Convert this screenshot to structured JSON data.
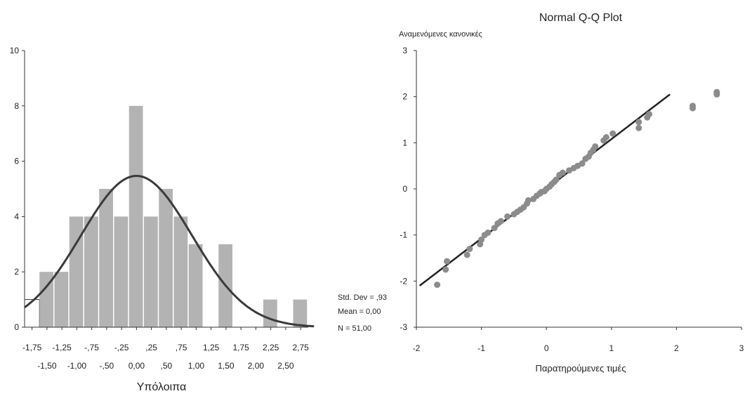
{
  "chart_data": [
    {
      "type": "bar",
      "xlabel": "Υπόλοιπα",
      "ylabel": "",
      "ylim": [
        0,
        10
      ],
      "yticks": [
        "0",
        "2",
        "4",
        "6",
        "8",
        "10"
      ],
      "bin_width": 0.25,
      "bins": [
        {
          "center": -1.75,
          "value": 1
        },
        {
          "center": -1.5,
          "value": 2
        },
        {
          "center": -1.25,
          "value": 2
        },
        {
          "center": -1.0,
          "value": 4
        },
        {
          "center": -0.75,
          "value": 4
        },
        {
          "center": -0.5,
          "value": 5
        },
        {
          "center": -0.25,
          "value": 4
        },
        {
          "center": 0.0,
          "value": 8
        },
        {
          "center": 0.25,
          "value": 4
        },
        {
          "center": 0.5,
          "value": 5
        },
        {
          "center": 0.75,
          "value": 4
        },
        {
          "center": 1.0,
          "value": 3
        },
        {
          "center": 1.25,
          "value": 0
        },
        {
          "center": 1.5,
          "value": 3
        },
        {
          "center": 1.75,
          "value": 0
        },
        {
          "center": 2.0,
          "value": 0
        },
        {
          "center": 2.25,
          "value": 1
        },
        {
          "center": 2.5,
          "value": 0
        },
        {
          "center": 2.75,
          "value": 1
        }
      ],
      "xticks_top": [
        "-1,75",
        "-1,25",
        "-,75",
        "-,25",
        ",25",
        ",75",
        "1,25",
        "1,75",
        "2,25",
        "2,75"
      ],
      "xticks_bottom": [
        "-1,50",
        "-1,00",
        "-,50",
        "0,00",
        ",50",
        "1,00",
        "1,50",
        "2,00",
        "2,50"
      ],
      "normal_curve": {
        "mean": 0.0,
        "std": 0.93,
        "n": 51
      },
      "stats": [
        "Std. Dev = ,93",
        "Mean = 0,00",
        "N = 51,00"
      ],
      "colors": {
        "bar": "#b3b3b3",
        "curve": "#3a3a3a"
      }
    },
    {
      "type": "scatter",
      "title": "Normal Q-Q Plot",
      "ylabel": "Αναμενόμενες κανονικές",
      "xlabel": "Παρατηρούμενες τιμές",
      "xlim": [
        -2,
        3
      ],
      "ylim": [
        -3,
        3
      ],
      "xticks": [
        "-2",
        "-1",
        "0",
        "1",
        "2",
        "3"
      ],
      "yticks": [
        "-3",
        "-2",
        "-1",
        "0",
        "1",
        "2",
        "3"
      ],
      "reference_line": [
        [
          -1.95,
          -2.1
        ],
        [
          1.9,
          2.05
        ]
      ],
      "points": [
        [
          -1.68,
          -2.08
        ],
        [
          -1.55,
          -1.75
        ],
        [
          -1.53,
          -1.57
        ],
        [
          -1.22,
          -1.43
        ],
        [
          -1.18,
          -1.3
        ],
        [
          -1.02,
          -1.2
        ],
        [
          -1.0,
          -1.1
        ],
        [
          -0.95,
          -1.0
        ],
        [
          -0.9,
          -0.95
        ],
        [
          -0.8,
          -0.85
        ],
        [
          -0.75,
          -0.75
        ],
        [
          -0.7,
          -0.7
        ],
        [
          -0.6,
          -0.6
        ],
        [
          -0.5,
          -0.55
        ],
        [
          -0.45,
          -0.5
        ],
        [
          -0.4,
          -0.45
        ],
        [
          -0.35,
          -0.4
        ],
        [
          -0.3,
          -0.32
        ],
        [
          -0.28,
          -0.25
        ],
        [
          -0.2,
          -0.22
        ],
        [
          -0.15,
          -0.15
        ],
        [
          -0.1,
          -0.1
        ],
        [
          -0.08,
          -0.07
        ],
        [
          -0.03,
          -0.05
        ],
        [
          0.0,
          0.0
        ],
        [
          0.05,
          0.05
        ],
        [
          0.08,
          0.1
        ],
        [
          0.12,
          0.15
        ],
        [
          0.15,
          0.2
        ],
        [
          0.2,
          0.3
        ],
        [
          0.25,
          0.35
        ],
        [
          0.35,
          0.4
        ],
        [
          0.42,
          0.45
        ],
        [
          0.48,
          0.5
        ],
        [
          0.55,
          0.55
        ],
        [
          0.6,
          0.65
        ],
        [
          0.65,
          0.7
        ],
        [
          0.68,
          0.78
        ],
        [
          0.72,
          0.85
        ],
        [
          0.75,
          0.92
        ],
        [
          0.88,
          1.05
        ],
        [
          0.92,
          1.12
        ],
        [
          1.02,
          1.2
        ],
        [
          1.42,
          1.32
        ],
        [
          1.42,
          1.45
        ],
        [
          1.55,
          1.55
        ],
        [
          1.58,
          1.62
        ],
        [
          2.25,
          1.75
        ],
        [
          2.25,
          1.8
        ],
        [
          2.62,
          2.05
        ],
        [
          2.62,
          2.1
        ]
      ],
      "colors": {
        "point": "#8c8c8c",
        "line": "#222222"
      }
    }
  ]
}
